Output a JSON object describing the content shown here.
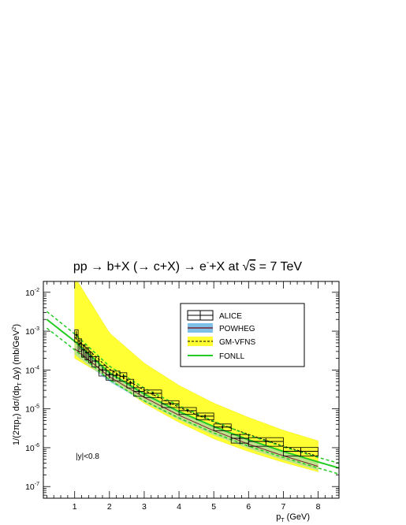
{
  "chart_data": {
    "type": "line",
    "title": "pp → b+X (→ c+X) → e+X at √s = 7 TeV",
    "title_parts": {
      "main": "pp → b+X (→ c+X) → e",
      "superscript": "-",
      "after": "+X at ",
      "sqrt_arg": "s",
      "energy": " = 7 TeV"
    },
    "xlabel": "p_T (GeV)",
    "xlabel_parts": {
      "p": "p",
      "sub": "T",
      "unit": " (GeV)"
    },
    "ylabel": "1/(2πp_T) dσ/(dp_T Δy) (mb/GeV²)",
    "ylabel_parts": {
      "pre": "1/(2πp",
      "sub1": "T",
      "mid": ") dσ/(dp",
      "sub2": "T",
      "post": " Δy) (mb/GeV",
      "sup": "2",
      "end": ")"
    },
    "xlim": [
      0.1,
      8.6
    ],
    "ylim_log10": [
      -7.3,
      -1.72
    ],
    "yscale": "log",
    "x_ticks": [
      "1",
      "2",
      "3",
      "4",
      "5",
      "6",
      "7",
      "8"
    ],
    "y_ticks": [
      {
        "base": "10",
        "exp": "-7"
      },
      {
        "base": "10",
        "exp": "-6"
      },
      {
        "base": "10",
        "exp": "-5"
      },
      {
        "base": "10",
        "exp": "-4"
      },
      {
        "base": "10",
        "exp": "-3"
      },
      {
        "base": "10",
        "exp": "-2"
      }
    ],
    "annotation": "|y|<0.8",
    "legend_position": "top-right",
    "legend": [
      {
        "label": "ALICE",
        "style": "box-with-errors"
      },
      {
        "label": "POWHEG",
        "style": "blue-band"
      },
      {
        "label": "GM-VFNS",
        "style": "yellow-band-dashed"
      },
      {
        "label": "FONLL",
        "style": "green-line"
      }
    ],
    "colors": {
      "alice": "#000000",
      "powheg_band": "#7ec1e8",
      "powheg_line": "#7a2030",
      "gmvfns_band": "#ffff33",
      "gmvfns_line": "#000000",
      "fonll": "#22cc22"
    },
    "alice": {
      "x": [
        1.05,
        1.15,
        1.25,
        1.35,
        1.45,
        1.6,
        1.8,
        2.0,
        2.2,
        2.4,
        2.6,
        2.85,
        3.25,
        3.75,
        4.25,
        4.75,
        5.25,
        5.75,
        6.5,
        7.5
      ],
      "xerr": [
        0.05,
        0.05,
        0.05,
        0.05,
        0.05,
        0.1,
        0.1,
        0.1,
        0.1,
        0.1,
        0.1,
        0.15,
        0.25,
        0.25,
        0.25,
        0.25,
        0.25,
        0.25,
        0.5,
        0.5
      ],
      "y": [
        0.0008,
        0.00047,
        0.00033,
        0.00028,
        0.00022,
        0.00017,
        0.0001,
        7.6e-05,
        7.3e-05,
        6.8e-05,
        4.6e-05,
        2.8e-05,
        2.5e-05,
        1.35e-05,
        9e-06,
        6.5e-06,
        3.4e-06,
        1.75e-06,
        1.45e-06,
        8.1e-07
      ],
      "stat_err_rel": [
        0.25,
        0.3,
        0.35,
        0.35,
        0.3,
        0.25,
        0.2,
        0.2,
        0.18,
        0.15,
        0.15,
        0.15,
        0.12,
        0.1,
        0.1,
        0.1,
        0.12,
        0.3,
        0.2,
        0.25
      ],
      "sys_err_rel": [
        0.35,
        0.35,
        0.35,
        0.35,
        0.3,
        0.3,
        0.3,
        0.28,
        0.28,
        0.25,
        0.25,
        0.25,
        0.22,
        0.2,
        0.2,
        0.2,
        0.2,
        0.25,
        0.25,
        0.25
      ]
    },
    "gmvfns_band": {
      "x": [
        1.0,
        2.0,
        3.0,
        4.0,
        5.0,
        6.0,
        7.0,
        8.0
      ],
      "upper": [
        0.025,
        0.0009,
        0.00015,
        4e-05,
        1.4e-05,
        6e-06,
        2.8e-06,
        1.5e-06
      ],
      "lower": [
        0.0002,
        6e-05,
        1.4e-05,
        4.5e-06,
        1.7e-06,
        8e-07,
        4.2e-07,
        2.4e-07
      ]
    },
    "gmvfns_line": {
      "x": [
        1.0,
        2.0,
        3.0,
        4.0,
        5.0,
        6.0,
        7.0,
        8.0
      ],
      "y": [
        0.0007,
        0.000105,
        3e-05,
        1.1e-05,
        4.6e-06,
        2.2e-06,
        1.1e-06,
        6e-07
      ]
    },
    "powheg_band": {
      "x": [
        1.0,
        2.0,
        3.0,
        4.0,
        5.0,
        6.0,
        7.0,
        8.0
      ],
      "upper": [
        0.0005,
        9e-05,
        2.6e-05,
        9e-06,
        3.6e-06,
        1.6e-06,
        8e-07,
        4.2e-07
      ],
      "lower": [
        0.00025,
        5e-05,
        1.5e-05,
        5.2e-06,
        2.1e-06,
        9.5e-07,
        4.8e-07,
        2.6e-07
      ]
    },
    "fonll_central": {
      "x": [
        0.2,
        1.0,
        2.0,
        3.0,
        4.0,
        5.0,
        6.0,
        7.0,
        8.0,
        8.6
      ],
      "y": [
        0.002,
        0.00055,
        8.5e-05,
        2.4e-05,
        8.5e-06,
        3.5e-06,
        1.6e-06,
        8e-07,
        4.3e-07,
        3e-07
      ]
    },
    "fonll_upper": {
      "x": [
        0.2,
        1.0,
        2.0,
        3.0,
        4.0,
        5.0,
        6.0,
        7.0,
        8.0,
        8.6
      ],
      "y": [
        0.0032,
        0.00085,
        0.000125,
        3.4e-05,
        1.2e-05,
        4.8e-06,
        2.1e-06,
        1.05e-06,
        5.6e-07,
        4e-07
      ]
    },
    "fonll_lower": {
      "x": [
        0.2,
        1.0,
        2.0,
        3.0,
        4.0,
        5.0,
        6.0,
        7.0,
        8.0,
        8.6
      ],
      "y": [
        0.0012,
        0.00033,
        5.5e-05,
        1.6e-05,
        5.8e-06,
        2.4e-06,
        1.1e-06,
        5.6e-07,
        3e-07,
        2.1e-07
      ]
    }
  }
}
